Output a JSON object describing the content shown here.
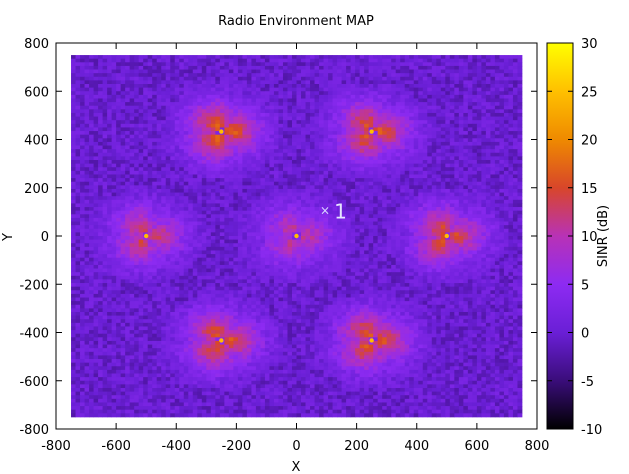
{
  "chart_data": {
    "type": "heatmap",
    "title": "Radio Environment MAP",
    "xlabel": "X",
    "ylabel": "Y",
    "colorbar_label": "SINR (dB)",
    "xlim": [
      -800,
      800
    ],
    "ylim": [
      -800,
      800
    ],
    "data_extent": {
      "x": [
        -750,
        750
      ],
      "y": [
        -750,
        750
      ]
    },
    "x_ticks": [
      -800,
      -600,
      -400,
      -200,
      0,
      200,
      400,
      600,
      800
    ],
    "y_ticks": [
      -800,
      -600,
      -400,
      -200,
      0,
      200,
      400,
      600,
      800
    ],
    "colorbar_range": [
      -10,
      30
    ],
    "colorbar_ticks": [
      -10,
      -5,
      0,
      5,
      10,
      15,
      20,
      25,
      30
    ],
    "grid": false,
    "palette": [
      "#000000",
      "#3a0d7a",
      "#6a1fd6",
      "#8d2bf2",
      "#b832b6",
      "#d8462a",
      "#ef8a00",
      "#ffc000",
      "#ffff00"
    ],
    "background_sinr_db": 0,
    "cells": [
      {
        "x": 0,
        "y": 0,
        "peak_sinr_db": 12
      },
      {
        "x": 500,
        "y": 0,
        "peak_sinr_db": 16
      },
      {
        "x": -500,
        "y": 0,
        "peak_sinr_db": 14
      },
      {
        "x": 250,
        "y": 433,
        "peak_sinr_db": 17
      },
      {
        "x": -250,
        "y": 433,
        "peak_sinr_db": 18
      },
      {
        "x": 250,
        "y": -433,
        "peak_sinr_db": 17
      },
      {
        "x": -250,
        "y": -433,
        "peak_sinr_db": 17
      }
    ],
    "annotations": [
      {
        "text": "1",
        "x": 105,
        "y": 105,
        "marker": "×"
      }
    ]
  }
}
